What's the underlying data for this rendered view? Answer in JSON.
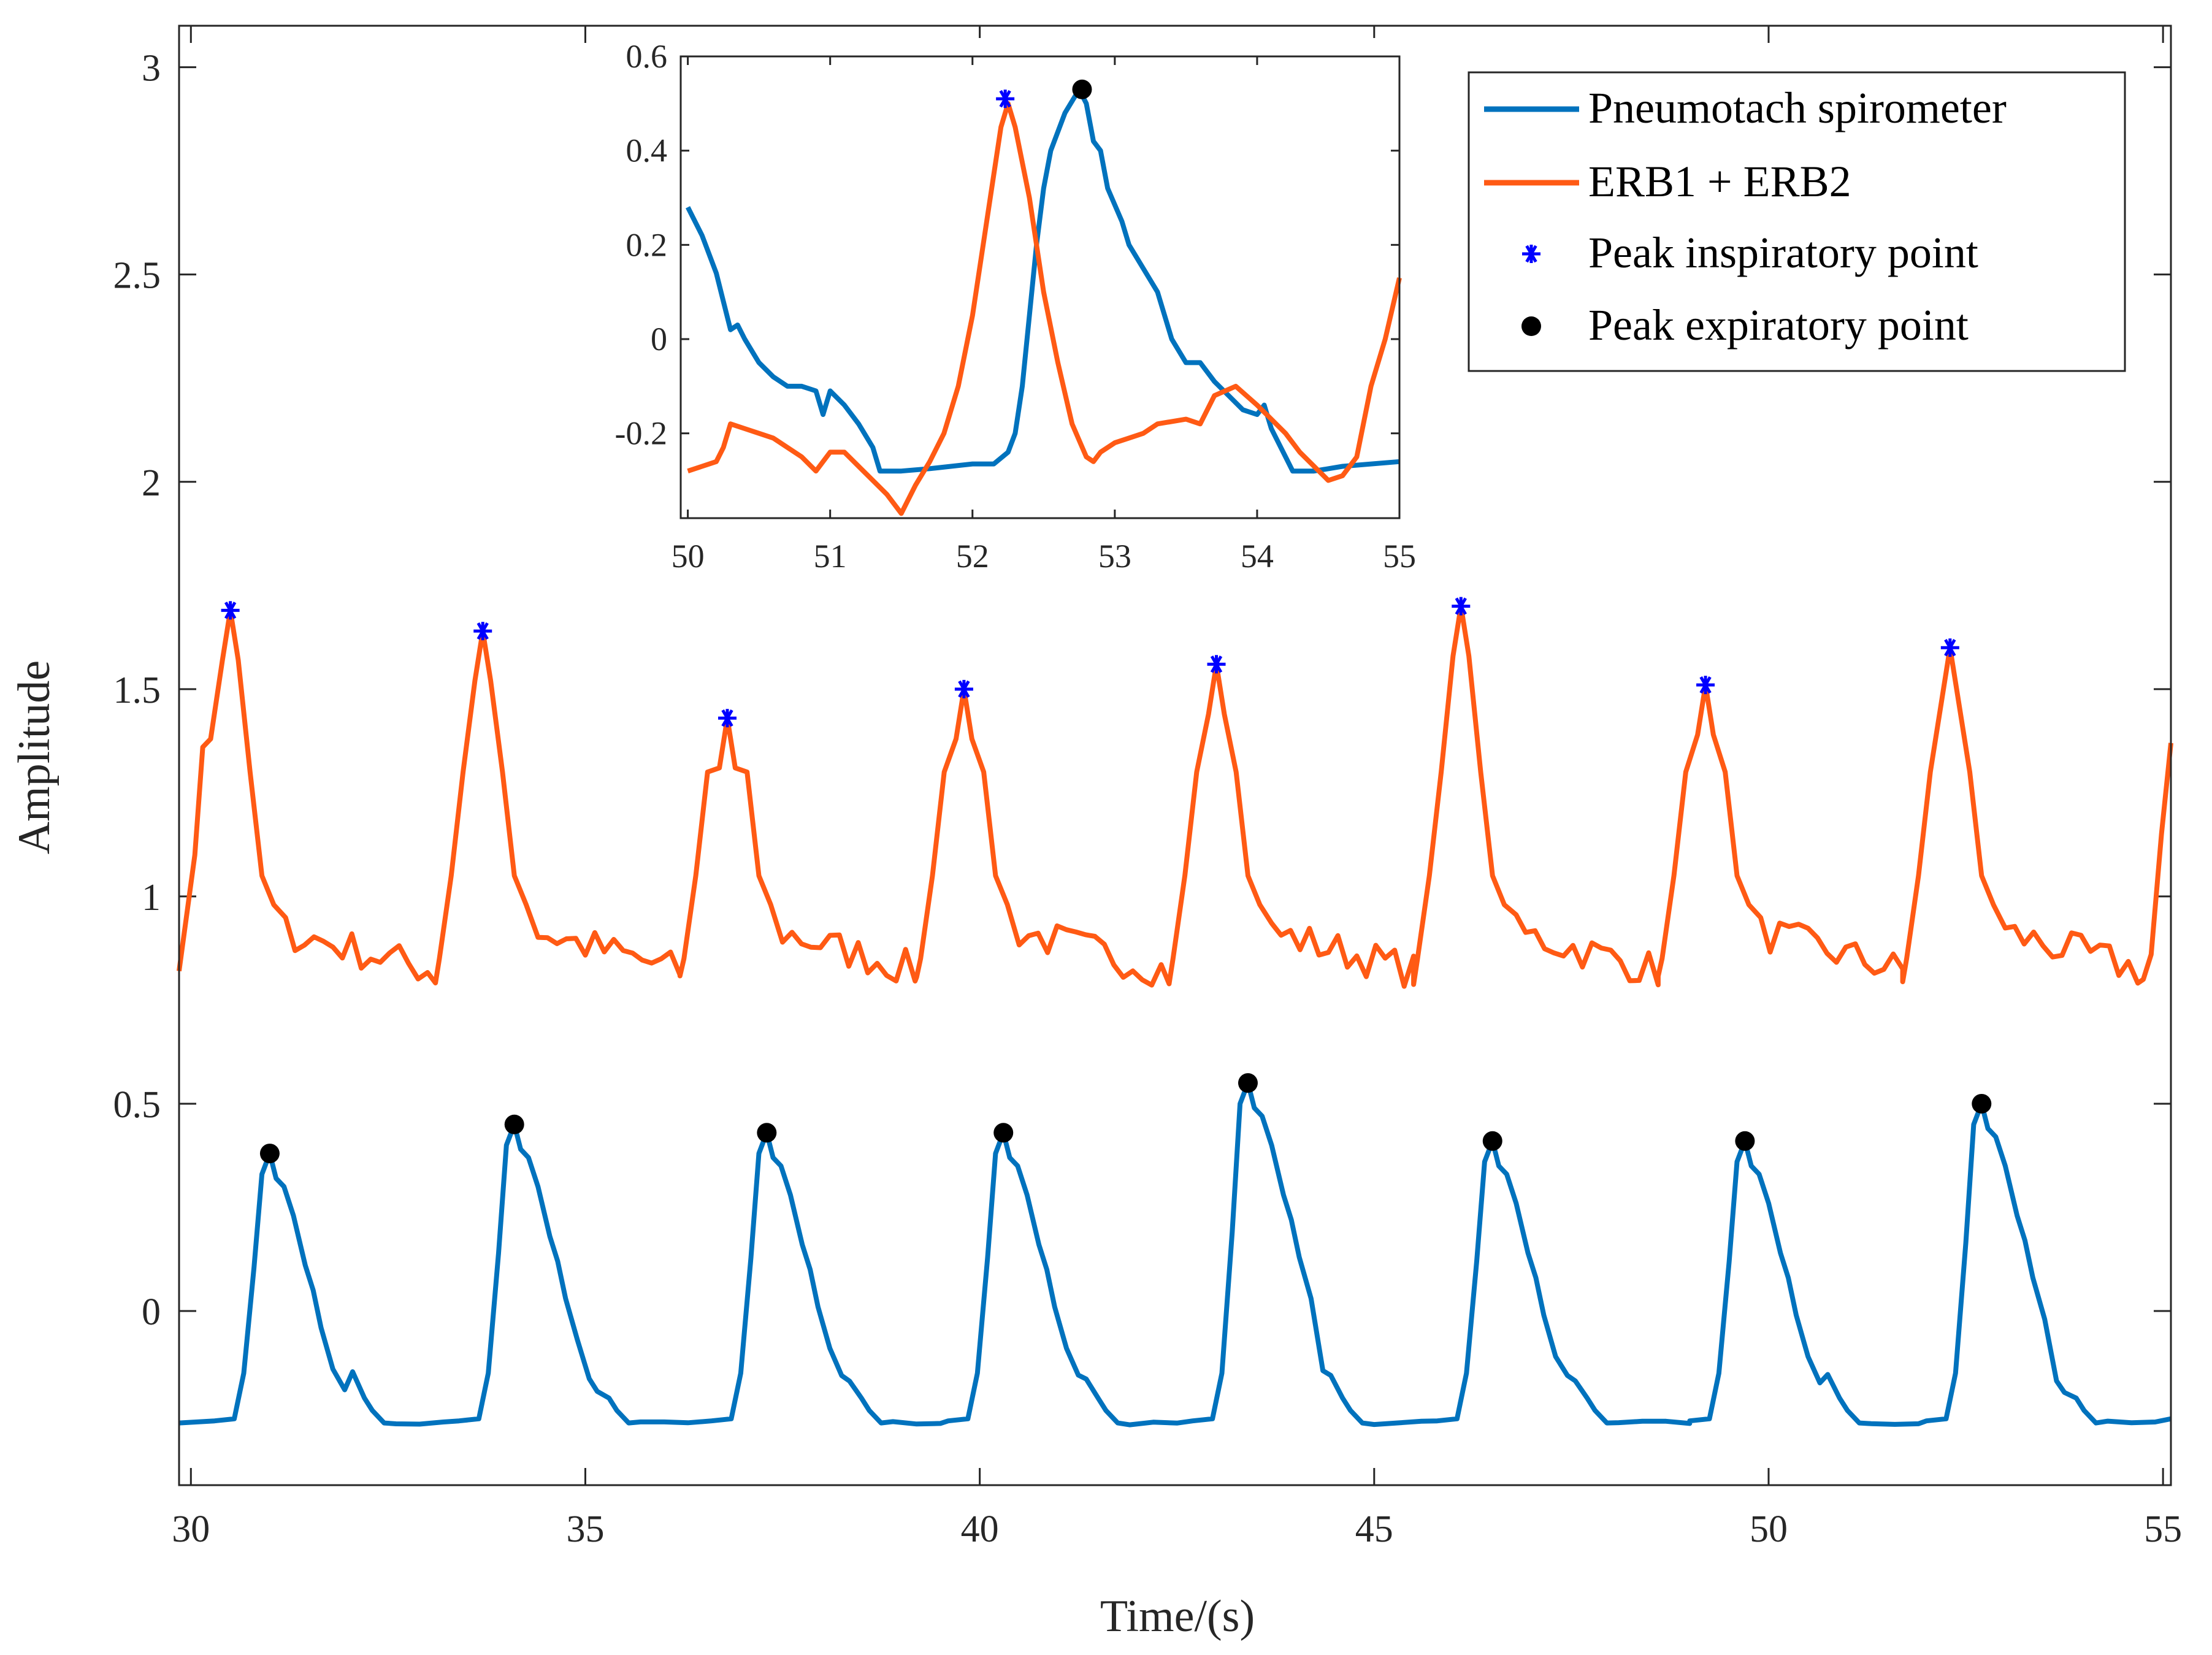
{
  "chart_data": [
    {
      "type": "line",
      "role": "main",
      "xlabel": "Time/(s)",
      "ylabel": "Amplitude",
      "xlim": [
        29.85,
        55.1
      ],
      "ylim": [
        -0.42,
        3.1
      ],
      "x_ticks": [
        30,
        35,
        40,
        45,
        50,
        55
      ],
      "x_tick_labels": [
        "30",
        "35",
        "40",
        "45",
        "50",
        "55"
      ],
      "y_ticks": [
        0,
        0.5,
        1,
        1.5,
        2,
        2.5,
        3
      ],
      "y_tick_labels": [
        "0",
        "0.5",
        "1",
        "1.5",
        "2",
        "2.5",
        "3"
      ],
      "series": [
        {
          "name": "Pneumotach spirometer",
          "color": "#0072BD",
          "breath_peaks": [
            [
              31.0,
              0.38
            ],
            [
              34.1,
              0.45
            ],
            [
              37.3,
              0.43
            ],
            [
              40.3,
              0.43
            ],
            [
              43.4,
              0.55
            ],
            [
              46.5,
              0.41
            ],
            [
              49.7,
              0.41
            ],
            [
              52.7,
              0.5
            ]
          ],
          "baseline": -0.27,
          "end_value": -0.26
        },
        {
          "name": "ERB1 + ERB2",
          "color": "#FF5A14",
          "breath_peaks": [
            [
              30.5,
              1.69
            ],
            [
              33.7,
              1.64
            ],
            [
              36.8,
              1.43
            ],
            [
              39.8,
              1.5
            ],
            [
              43.0,
              1.56
            ],
            [
              46.1,
              1.7
            ],
            [
              49.2,
              1.51
            ],
            [
              52.3,
              1.6
            ]
          ],
          "baseline": 0.9,
          "end_value": 1.37
        },
        {
          "name": "Peak inspiratory point",
          "marker": "asterisk",
          "color": "#0000FF",
          "points": [
            [
              30.5,
              1.69
            ],
            [
              33.7,
              1.64
            ],
            [
              36.8,
              1.43
            ],
            [
              39.8,
              1.5
            ],
            [
              43.0,
              1.56
            ],
            [
              46.1,
              1.7
            ],
            [
              49.2,
              1.51
            ],
            [
              52.3,
              1.6
            ]
          ]
        },
        {
          "name": "Peak expiratory point",
          "marker": "dot",
          "color": "#000000",
          "points": [
            [
              31.0,
              0.38
            ],
            [
              34.1,
              0.45
            ],
            [
              37.3,
              0.43
            ],
            [
              40.3,
              0.43
            ],
            [
              43.4,
              0.55
            ],
            [
              46.5,
              0.41
            ],
            [
              49.7,
              0.41
            ],
            [
              52.7,
              0.5
            ]
          ]
        }
      ],
      "legend": {
        "position": "top-right",
        "entries": [
          "Pneumotach spirometer",
          "ERB1 + ERB2",
          "Peak inspiratory point",
          "Peak expiratory point"
        ]
      }
    },
    {
      "type": "line",
      "role": "inset",
      "xlim": [
        49.95,
        55.0
      ],
      "ylim": [
        -0.38,
        0.6
      ],
      "x_ticks": [
        50,
        51,
        52,
        53,
        54,
        55
      ],
      "x_tick_labels": [
        "50",
        "51",
        "52",
        "53",
        "54",
        "55"
      ],
      "y_ticks": [
        -0.2,
        0,
        0.2,
        0.4,
        0.6
      ],
      "y_tick_labels": [
        "-0.2",
        "0",
        "0.2",
        "0.4",
        "0.6"
      ],
      "series": [
        {
          "name": "Pneumotach spirometer",
          "color": "#0072BD",
          "points": [
            [
              50.0,
              0.28
            ],
            [
              50.1,
              0.22
            ],
            [
              50.2,
              0.14
            ],
            [
              50.25,
              0.08
            ],
            [
              50.3,
              0.02
            ],
            [
              50.35,
              0.03
            ],
            [
              50.4,
              0.0
            ],
            [
              50.5,
              -0.05
            ],
            [
              50.6,
              -0.08
            ],
            [
              50.7,
              -0.1
            ],
            [
              50.8,
              -0.1
            ],
            [
              50.9,
              -0.11
            ],
            [
              50.95,
              -0.16
            ],
            [
              51.0,
              -0.11
            ],
            [
              51.1,
              -0.14
            ],
            [
              51.2,
              -0.18
            ],
            [
              51.3,
              -0.23
            ],
            [
              51.35,
              -0.28
            ],
            [
              51.5,
              -0.28
            ],
            [
              51.7,
              -0.275
            ],
            [
              52.0,
              -0.265
            ],
            [
              52.15,
              -0.265
            ],
            [
              52.25,
              -0.24
            ],
            [
              52.3,
              -0.2
            ],
            [
              52.35,
              -0.1
            ],
            [
              52.4,
              0.05
            ],
            [
              52.45,
              0.2
            ],
            [
              52.5,
              0.32
            ],
            [
              52.55,
              0.4
            ],
            [
              52.65,
              0.48
            ],
            [
              52.75,
              0.53
            ],
            [
              52.8,
              0.5
            ],
            [
              52.85,
              0.42
            ],
            [
              52.9,
              0.4
            ],
            [
              52.95,
              0.32
            ],
            [
              53.05,
              0.25
            ],
            [
              53.1,
              0.2
            ],
            [
              53.2,
              0.15
            ],
            [
              53.3,
              0.1
            ],
            [
              53.4,
              0.0
            ],
            [
              53.5,
              -0.05
            ],
            [
              53.6,
              -0.05
            ],
            [
              53.7,
              -0.09
            ],
            [
              53.8,
              -0.12
            ],
            [
              53.9,
              -0.15
            ],
            [
              54.0,
              -0.16
            ],
            [
              54.05,
              -0.14
            ],
            [
              54.1,
              -0.19
            ],
            [
              54.2,
              -0.25
            ],
            [
              54.25,
              -0.28
            ],
            [
              54.4,
              -0.28
            ],
            [
              54.6,
              -0.27
            ],
            [
              55.0,
              -0.26
            ]
          ]
        },
        {
          "name": "ERB1 + ERB2",
          "color": "#FF5A14",
          "points": [
            [
              50.0,
              -0.28
            ],
            [
              50.1,
              -0.27
            ],
            [
              50.2,
              -0.26
            ],
            [
              50.25,
              -0.23
            ],
            [
              50.3,
              -0.18
            ],
            [
              50.4,
              -0.19
            ],
            [
              50.5,
              -0.2
            ],
            [
              50.6,
              -0.21
            ],
            [
              50.8,
              -0.25
            ],
            [
              50.9,
              -0.28
            ],
            [
              51.0,
              -0.24
            ],
            [
              51.1,
              -0.24
            ],
            [
              51.2,
              -0.27
            ],
            [
              51.3,
              -0.3
            ],
            [
              51.4,
              -0.33
            ],
            [
              51.5,
              -0.37
            ],
            [
              51.6,
              -0.31
            ],
            [
              51.7,
              -0.26
            ],
            [
              51.8,
              -0.2
            ],
            [
              51.9,
              -0.1
            ],
            [
              52.0,
              0.05
            ],
            [
              52.1,
              0.25
            ],
            [
              52.2,
              0.45
            ],
            [
              52.25,
              0.5
            ],
            [
              52.3,
              0.45
            ],
            [
              52.4,
              0.3
            ],
            [
              52.5,
              0.1
            ],
            [
              52.6,
              -0.05
            ],
            [
              52.7,
              -0.18
            ],
            [
              52.8,
              -0.25
            ],
            [
              52.85,
              -0.26
            ],
            [
              52.9,
              -0.24
            ],
            [
              53.0,
              -0.22
            ],
            [
              53.1,
              -0.21
            ],
            [
              53.2,
              -0.2
            ],
            [
              53.3,
              -0.18
            ],
            [
              53.5,
              -0.17
            ],
            [
              53.6,
              -0.18
            ],
            [
              53.7,
              -0.12
            ],
            [
              53.85,
              -0.1
            ],
            [
              54.0,
              -0.14
            ],
            [
              54.2,
              -0.2
            ],
            [
              54.3,
              -0.24
            ],
            [
              54.4,
              -0.27
            ],
            [
              54.5,
              -0.3
            ],
            [
              54.6,
              -0.29
            ],
            [
              54.7,
              -0.25
            ],
            [
              54.8,
              -0.1
            ],
            [
              54.9,
              0.0
            ],
            [
              55.0,
              0.13
            ]
          ]
        },
        {
          "name": "Peak inspiratory point",
          "marker": "asterisk",
          "color": "#0000FF",
          "points": [
            [
              52.23,
              0.51
            ]
          ]
        },
        {
          "name": "Peak expiratory point",
          "marker": "dot",
          "color": "#000000",
          "points": [
            [
              52.77,
              0.53
            ]
          ]
        }
      ]
    }
  ]
}
